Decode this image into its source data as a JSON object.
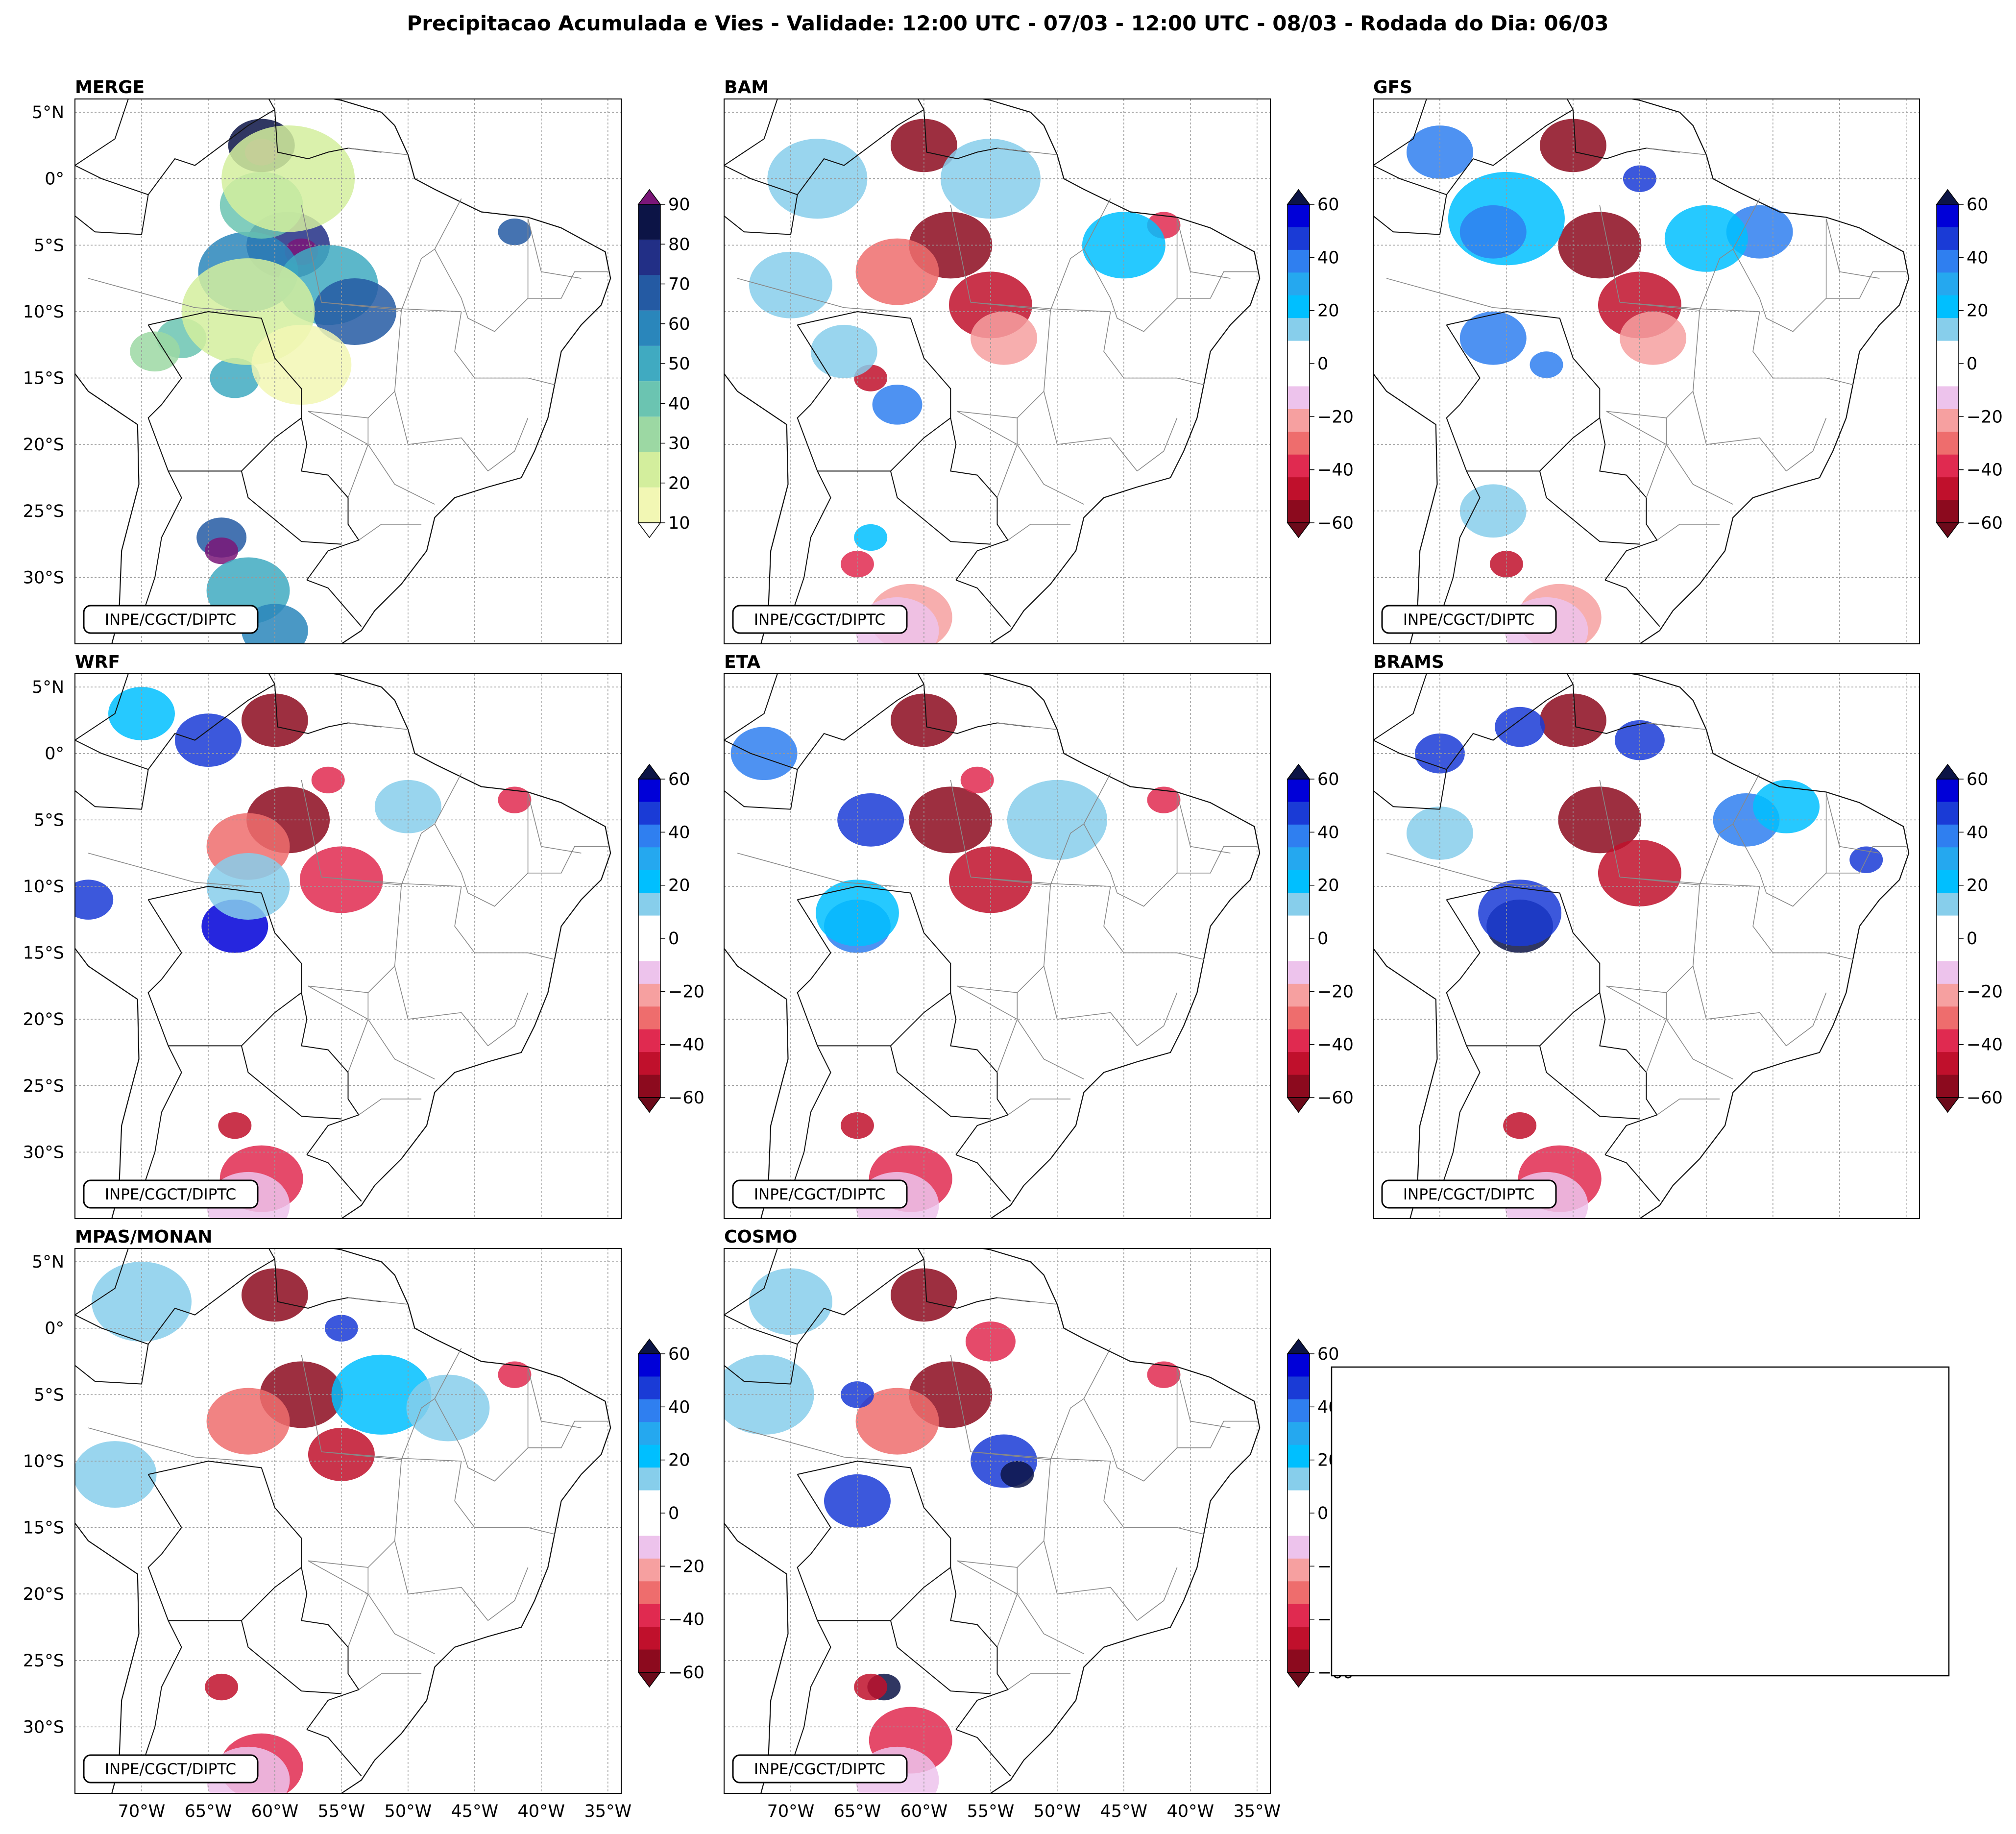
{
  "title": "Precipitacao Acumulada e Vies - Validade: 12:00 UTC - 07/03 - 12:00 UTC - 08/03 - Rodada do Dia: 06/03",
  "credit": "INPE/CGCT/DIPTC",
  "lat_labels": [
    "5°N",
    "0°",
    "5°S",
    "10°S",
    "15°S",
    "20°S",
    "25°S",
    "30°S"
  ],
  "lat_values": [
    5,
    0,
    -5,
    -10,
    -15,
    -20,
    -25,
    -30
  ],
  "lon_labels": [
    "70°W",
    "65°W",
    "60°W",
    "55°W",
    "50°W",
    "45°W",
    "40°W",
    "35°W"
  ],
  "lon_values": [
    -70,
    -65,
    -60,
    -55,
    -50,
    -45,
    -40,
    -35
  ],
  "extent": {
    "lon_min": -75,
    "lon_max": -34,
    "lat_min": -35,
    "lat_max": 6
  },
  "colorbars": {
    "precip": {
      "ticks": [
        "10",
        "20",
        "30",
        "40",
        "50",
        "60",
        "70",
        "80",
        "90"
      ],
      "colors": [
        "#f2f7b4",
        "#d3ee9d",
        "#9cd8a3",
        "#6bc4b1",
        "#40aac1",
        "#2a86bb",
        "#245aa3",
        "#222f86",
        "#0c1446"
      ],
      "over": "#7a1678",
      "under": "#ffffff"
    },
    "bias": {
      "ticks": [
        "60",
        "40",
        "20",
        "0",
        "−20",
        "−40",
        "−60"
      ],
      "colors_top_to_bottom": [
        "#0000d8",
        "#1a3bd6",
        "#2f7ff0",
        "#25a8ef",
        "#00bfff",
        "#87ceeb",
        "#ffffff",
        "#ffffff",
        "#edc3ec",
        "#f6a0a0",
        "#ee6d6d",
        "#e02a50",
        "#c0102c",
        "#8c0a1e"
      ],
      "over": "#0c1446",
      "under": "#6b0a1a"
    }
  },
  "panels": [
    {
      "name": "MERGE",
      "kind": "precip"
    },
    {
      "name": "BAM",
      "kind": "bias"
    },
    {
      "name": "GFS",
      "kind": "bias"
    },
    {
      "name": "WRF",
      "kind": "bias"
    },
    {
      "name": "ETA",
      "kind": "bias"
    },
    {
      "name": "BRAMS",
      "kind": "bias"
    },
    {
      "name": "MPAS/MONAN",
      "kind": "bias"
    },
    {
      "name": "COSMO",
      "kind": "bias"
    }
  ],
  "blobs": {
    "MERGE": [
      [
        -61,
        2.5,
        "#0c1446",
        4
      ],
      [
        -61,
        2,
        "#7a1678",
        2
      ],
      [
        -59,
        -5,
        "#222f86",
        5
      ],
      [
        -58,
        -5.5,
        "#7a1678",
        2
      ],
      [
        -62,
        -7,
        "#2a86bb",
        6
      ],
      [
        -56,
        -8,
        "#40aac1",
        6
      ],
      [
        -54,
        -10,
        "#245aa3",
        5
      ],
      [
        -61,
        -2,
        "#6bc4b1",
        5
      ],
      [
        -67,
        -12,
        "#6bc4b1",
        3
      ],
      [
        -69,
        -13,
        "#9cd8a3",
        3
      ],
      [
        -63,
        -15,
        "#40aac1",
        3
      ],
      [
        -64,
        -27,
        "#245aa3",
        3
      ],
      [
        -64,
        -28,
        "#7a1678",
        2
      ],
      [
        -62,
        -31,
        "#40aac1",
        5
      ],
      [
        -60,
        -34,
        "#2a86bb",
        4
      ],
      [
        -42,
        -4,
        "#245aa3",
        2
      ],
      [
        -59,
        0,
        "#d3ee9d",
        8
      ],
      [
        -62,
        -10,
        "#d3ee9d",
        8
      ],
      [
        -58,
        -14,
        "#f2f7b4",
        6
      ]
    ],
    "BAM": [
      [
        -60,
        2.5,
        "#8c0a1e",
        4
      ],
      [
        -58,
        -5,
        "#8c0a1e",
        5
      ],
      [
        -62,
        -7,
        "#ee6d6d",
        5
      ],
      [
        -55,
        -9.5,
        "#c0102c",
        5
      ],
      [
        -54,
        -12,
        "#f6a0a0",
        4
      ],
      [
        -64,
        -15,
        "#c0102c",
        2
      ],
      [
        -65,
        -29,
        "#e02a50",
        2
      ],
      [
        -61,
        -33,
        "#f6a0a0",
        5
      ],
      [
        -62,
        -34,
        "#edc3ec",
        5
      ],
      [
        -42,
        -3.5,
        "#e02a50",
        2
      ],
      [
        -68,
        0,
        "#87ceeb",
        6
      ],
      [
        -55,
        0,
        "#87ceeb",
        6
      ],
      [
        -45,
        -5,
        "#00bfff",
        5
      ],
      [
        -62,
        -17,
        "#2f7ff0",
        3
      ],
      [
        -66,
        -13,
        "#87ceeb",
        4
      ],
      [
        -64,
        -27,
        "#00bfff",
        2
      ],
      [
        -70,
        -8,
        "#87ceeb",
        5
      ]
    ],
    "GFS": [
      [
        -60,
        2.5,
        "#8c0a1e",
        4
      ],
      [
        -58,
        -5,
        "#8c0a1e",
        5
      ],
      [
        -55,
        -9.5,
        "#c0102c",
        5
      ],
      [
        -54,
        -12,
        "#f6a0a0",
        4
      ],
      [
        -65,
        -29,
        "#c0102c",
        2
      ],
      [
        -61,
        -33,
        "#f6a0a0",
        5
      ],
      [
        -62,
        -34,
        "#edc3ec",
        5
      ],
      [
        -65,
        -3,
        "#00bfff",
        7
      ],
      [
        -66,
        -4,
        "#2f7ff0",
        4
      ],
      [
        -46,
        -4,
        "#2f7ff0",
        4
      ],
      [
        -50,
        -4.5,
        "#00bfff",
        5
      ],
      [
        -70,
        2,
        "#2f7ff0",
        4
      ],
      [
        -66,
        -12,
        "#2f7ff0",
        4
      ],
      [
        -62,
        -14,
        "#2f7ff0",
        2
      ],
      [
        -55,
        0,
        "#1a3bd6",
        2
      ],
      [
        -66,
        -25,
        "#87ceeb",
        4
      ]
    ],
    "WRF": [
      [
        -60,
        2.5,
        "#8c0a1e",
        4
      ],
      [
        -59,
        -5,
        "#8c0a1e",
        5
      ],
      [
        -62,
        -7,
        "#ee6d6d",
        5
      ],
      [
        -55,
        -9.5,
        "#e02a50",
        5
      ],
      [
        -63,
        -28,
        "#c0102c",
        2
      ],
      [
        -61,
        -32,
        "#e02a50",
        5
      ],
      [
        -62,
        -34,
        "#edc3ec",
        5
      ],
      [
        -63,
        -13,
        "#0000d8",
        4
      ],
      [
        -74,
        -11,
        "#1a3bd6",
        3
      ],
      [
        -65,
        1,
        "#1a3bd6",
        4
      ],
      [
        -70,
        3,
        "#00bfff",
        4
      ],
      [
        -62,
        -10,
        "#87ceeb",
        5
      ],
      [
        -56,
        -2,
        "#e02a50",
        2
      ],
      [
        -42,
        -3.5,
        "#e02a50",
        2
      ],
      [
        -50,
        -4,
        "#87ceeb",
        4
      ]
    ],
    "ETA": [
      [
        -60,
        2.5,
        "#8c0a1e",
        4
      ],
      [
        -58,
        -5,
        "#8c0a1e",
        5
      ],
      [
        -55,
        -9.5,
        "#c0102c",
        5
      ],
      [
        -65,
        -28,
        "#c0102c",
        2
      ],
      [
        -61,
        -32,
        "#e02a50",
        5
      ],
      [
        -62,
        -34,
        "#edc3ec",
        5
      ],
      [
        -64,
        -5,
        "#1a3bd6",
        4
      ],
      [
        -65,
        -13,
        "#2f7ff0",
        4
      ],
      [
        -72,
        0,
        "#2f7ff0",
        4
      ],
      [
        -50,
        -5,
        "#87ceeb",
        6
      ],
      [
        -65,
        -12,
        "#00bfff",
        5
      ],
      [
        -42,
        -3.5,
        "#e02a50",
        2
      ],
      [
        -56,
        -2,
        "#e02a50",
        2
      ]
    ],
    "BRAMS": [
      [
        -60,
        2.5,
        "#8c0a1e",
        4
      ],
      [
        -58,
        -5,
        "#8c0a1e",
        5
      ],
      [
        -55,
        -9,
        "#c0102c",
        5
      ],
      [
        -64,
        -13,
        "#0c1446",
        4
      ],
      [
        -64,
        -12,
        "#1a3bd6",
        5
      ],
      [
        -70,
        0,
        "#1a3bd6",
        3
      ],
      [
        -64,
        2,
        "#1a3bd6",
        3
      ],
      [
        -55,
        1,
        "#1a3bd6",
        3
      ],
      [
        -47,
        -5,
        "#2f7ff0",
        4
      ],
      [
        -44,
        -4,
        "#00bfff",
        4
      ],
      [
        -38,
        -8,
        "#1a3bd6",
        2
      ],
      [
        -64,
        -28,
        "#c0102c",
        2
      ],
      [
        -61,
        -32,
        "#e02a50",
        5
      ],
      [
        -62,
        -34,
        "#edc3ec",
        5
      ],
      [
        -70,
        -6,
        "#87ceeb",
        4
      ]
    ],
    "MPAS/MONAN": [
      [
        -60,
        2.5,
        "#8c0a1e",
        4
      ],
      [
        -58,
        -5,
        "#8c0a1e",
        5
      ],
      [
        -62,
        -7,
        "#ee6d6d",
        5
      ],
      [
        -55,
        -9.5,
        "#c0102c",
        4
      ],
      [
        -64,
        -27,
        "#c0102c",
        2
      ],
      [
        -61,
        -33,
        "#e02a50",
        5
      ],
      [
        -62,
        -34,
        "#edc3ec",
        5
      ],
      [
        -70,
        2,
        "#87ceeb",
        6
      ],
      [
        -52,
        -5,
        "#00bfff",
        6
      ],
      [
        -47,
        -6,
        "#87ceeb",
        5
      ],
      [
        -72,
        -11,
        "#87ceeb",
        5
      ],
      [
        -55,
        0,
        "#1a3bd6",
        2
      ],
      [
        -42,
        -3.5,
        "#e02a50",
        2
      ]
    ],
    "COSMO": [
      [
        -60,
        2.5,
        "#8c0a1e",
        4
      ],
      [
        -58,
        -5,
        "#8c0a1e",
        5
      ],
      [
        -62,
        -7,
        "#ee6d6d",
        5
      ],
      [
        -54,
        -10,
        "#1a3bd6",
        4
      ],
      [
        -53,
        -11,
        "#0c1446",
        2
      ],
      [
        -65,
        -13,
        "#1a3bd6",
        4
      ],
      [
        -63,
        -27,
        "#0c1446",
        2
      ],
      [
        -64,
        -27,
        "#c0102c",
        2
      ],
      [
        -61,
        -31,
        "#e02a50",
        5
      ],
      [
        -62,
        -34,
        "#edc3ec",
        5
      ],
      [
        -72,
        -5,
        "#87ceeb",
        6
      ],
      [
        -70,
        2,
        "#87ceeb",
        5
      ],
      [
        -65,
        -5,
        "#1a3bd6",
        2
      ],
      [
        -42,
        -3.5,
        "#e02a50",
        2
      ],
      [
        -55,
        -1,
        "#e02a50",
        3
      ]
    ]
  }
}
